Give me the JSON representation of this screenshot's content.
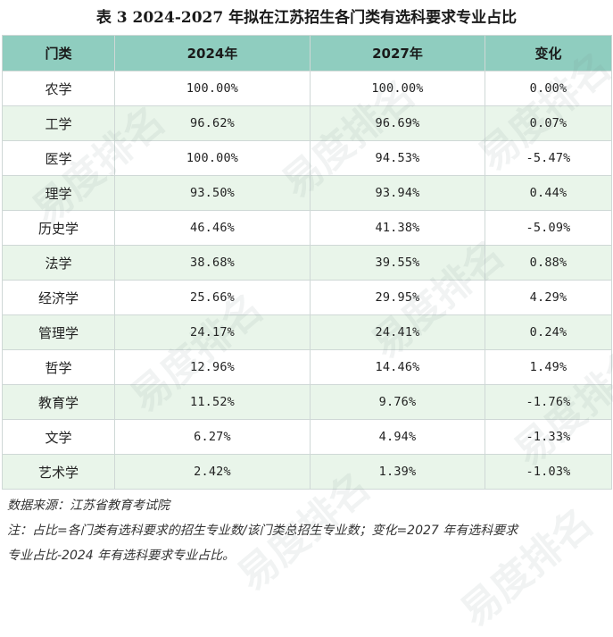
{
  "title": "表 3  2024-2027 年拟在江苏招生各门类有选科要求专业占比",
  "columns": [
    "门类",
    "2024年",
    "2027年",
    "变化"
  ],
  "rows": [
    {
      "category": "农学",
      "y2024": "100.00%",
      "y2027": "100.00%",
      "change": "0.00%"
    },
    {
      "category": "工学",
      "y2024": "96.62%",
      "y2027": "96.69%",
      "change": "0.07%"
    },
    {
      "category": "医学",
      "y2024": "100.00%",
      "y2027": "94.53%",
      "change": "-5.47%"
    },
    {
      "category": "理学",
      "y2024": "93.50%",
      "y2027": "93.94%",
      "change": "0.44%"
    },
    {
      "category": "历史学",
      "y2024": "46.46%",
      "y2027": "41.38%",
      "change": "-5.09%"
    },
    {
      "category": "法学",
      "y2024": "38.68%",
      "y2027": "39.55%",
      "change": "0.88%"
    },
    {
      "category": "经济学",
      "y2024": "25.66%",
      "y2027": "29.95%",
      "change": "4.29%"
    },
    {
      "category": "管理学",
      "y2024": "24.17%",
      "y2027": "24.41%",
      "change": "0.24%"
    },
    {
      "category": "哲学",
      "y2024": "12.96%",
      "y2027": "14.46%",
      "change": "1.49%"
    },
    {
      "category": "教育学",
      "y2024": "11.52%",
      "y2027": "9.76%",
      "change": "-1.76%"
    },
    {
      "category": "文学",
      "y2024": "6.27%",
      "y2027": "4.94%",
      "change": "-1.33%"
    },
    {
      "category": "艺术学",
      "y2024": "2.42%",
      "y2027": "1.39%",
      "change": "-1.03%"
    }
  ],
  "source_note": "数据来源：江苏省教育考试院",
  "footnote_line1": "注：占比=各门类有选科要求的招生专业数/该门类总招生专业数；变化=2027 年有选科要求",
  "footnote_line2": "专业占比-2024 年有选科要求专业占比。",
  "watermark_text": "易度排名",
  "colors": {
    "header_bg": "#8fcdbf",
    "alt_row_bg": "#e9f5ea",
    "border": "#cfd8d6"
  }
}
